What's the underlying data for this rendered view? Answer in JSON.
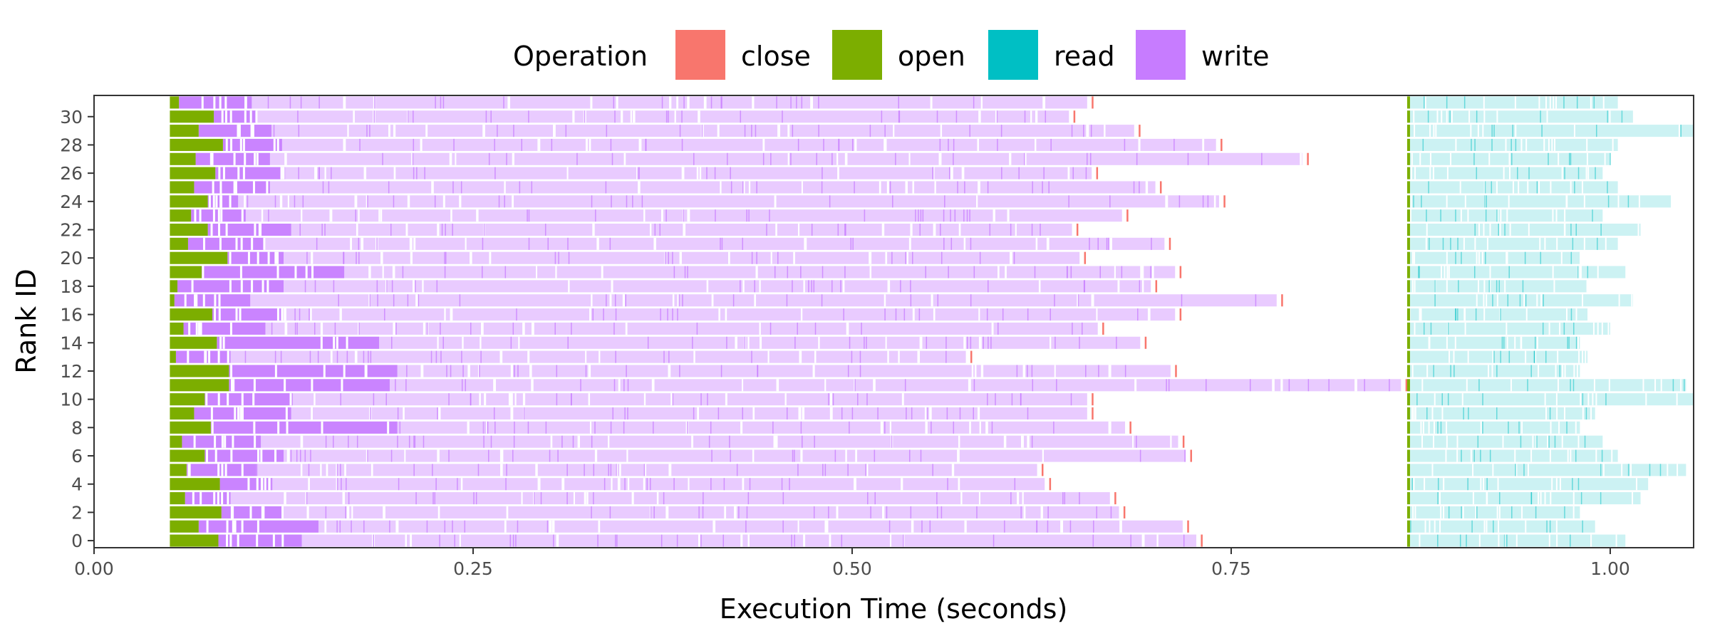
{
  "chart_data": {
    "type": "gantt",
    "title": "",
    "xlabel": "Execution Time (seconds)",
    "ylabel": "Rank ID",
    "xlim": [
      0.0,
      1.055
    ],
    "ylim": [
      -0.5,
      31.5
    ],
    "x_ticks": [
      0.0,
      0.25,
      0.5,
      0.75,
      1.0
    ],
    "x_tick_labels": [
      "0.00",
      "0.25",
      "0.50",
      "0.75",
      "1.00"
    ],
    "y_ticks": [
      0,
      2,
      4,
      6,
      8,
      10,
      12,
      14,
      16,
      18,
      20,
      22,
      24,
      26,
      28,
      30
    ],
    "y_tick_labels": [
      "0",
      "2",
      "4",
      "6",
      "8",
      "10",
      "12",
      "14",
      "16",
      "18",
      "20",
      "22",
      "24",
      "26",
      "28",
      "30"
    ],
    "grid": false,
    "legend": {
      "title": "Operation",
      "position": "top",
      "entries": [
        {
          "label": "close",
          "color": "#F8766D"
        },
        {
          "label": "open",
          "color": "#7CAE00"
        },
        {
          "label": "read",
          "color": "#00BFC4"
        },
        {
          "label": "write",
          "color": "#C77CFF"
        }
      ]
    },
    "ranks": [
      {
        "rank": 0,
        "open": [
          0.05,
          0.082
        ],
        "write_dense_end": 0.137,
        "write_end": 0.727,
        "close": 0.73,
        "read_end": 1.01
      },
      {
        "rank": 1,
        "open": [
          0.05,
          0.069
        ],
        "write_dense_end": 0.148,
        "write_end": 0.718,
        "close": 0.721,
        "read_end": 0.99
      },
      {
        "rank": 2,
        "open": [
          0.05,
          0.084
        ],
        "write_dense_end": 0.124,
        "write_end": 0.676,
        "close": 0.679,
        "read_end": 0.98
      },
      {
        "rank": 3,
        "open": [
          0.05,
          0.06
        ],
        "write_dense_end": 0.09,
        "write_end": 0.67,
        "close": 0.673,
        "read_end": 1.02
      },
      {
        "rank": 4,
        "open": [
          0.05,
          0.083
        ],
        "write_dense_end": 0.115,
        "write_end": 0.627,
        "close": 0.63,
        "read_end": 1.025
      },
      {
        "rank": 5,
        "open": [
          0.05,
          0.061
        ],
        "write_dense_end": 0.107,
        "write_end": 0.622,
        "close": 0.625,
        "read_end": 1.05
      },
      {
        "rank": 6,
        "open": [
          0.05,
          0.073
        ],
        "write_dense_end": 0.125,
        "write_end": 0.72,
        "close": 0.723,
        "read_end": 1.005
      },
      {
        "rank": 7,
        "open": [
          0.05,
          0.058
        ],
        "write_dense_end": 0.11,
        "write_end": 0.715,
        "close": 0.718,
        "read_end": 0.995
      },
      {
        "rank": 8,
        "open": [
          0.05,
          0.077
        ],
        "write_dense_end": 0.2,
        "write_end": 0.68,
        "close": 0.683,
        "read_end": 0.98
      },
      {
        "rank": 9,
        "open": [
          0.05,
          0.066
        ],
        "write_dense_end": 0.13,
        "write_end": 0.655,
        "close": 0.658,
        "read_end": 0.99
      },
      {
        "rank": 10,
        "open": [
          0.05,
          0.073
        ],
        "write_dense_end": 0.131,
        "write_end": 0.655,
        "close": 0.658,
        "read_end": 1.055
      },
      {
        "rank": 11,
        "open": [
          0.05,
          0.089
        ],
        "write_dense_end": 0.195,
        "write_end": 0.862,
        "close": 0.865,
        "read_end": 1.05
      },
      {
        "rank": 12,
        "open": [
          0.05,
          0.089
        ],
        "write_dense_end": 0.2,
        "write_end": 0.71,
        "close": 0.713,
        "read_end": 0.98
      },
      {
        "rank": 13,
        "open": [
          0.05,
          0.054
        ],
        "write_dense_end": 0.09,
        "write_end": 0.575,
        "close": 0.578,
        "read_end": 0.985
      },
      {
        "rank": 14,
        "open": [
          0.05,
          0.081
        ],
        "write_dense_end": 0.188,
        "write_end": 0.69,
        "close": 0.693,
        "read_end": 0.98
      },
      {
        "rank": 15,
        "open": [
          0.05,
          0.059
        ],
        "write_dense_end": 0.113,
        "write_end": 0.662,
        "close": 0.665,
        "read_end": 1.0
      },
      {
        "rank": 16,
        "open": [
          0.05,
          0.078
        ],
        "write_dense_end": 0.124,
        "write_end": 0.713,
        "close": 0.716,
        "read_end": 0.985
      },
      {
        "rank": 17,
        "open": [
          0.05,
          0.053
        ],
        "write_dense_end": 0.103,
        "write_end": 0.78,
        "close": 0.783,
        "read_end": 1.015
      },
      {
        "rank": 18,
        "open": [
          0.05,
          0.055
        ],
        "write_dense_end": 0.125,
        "write_end": 0.697,
        "close": 0.7,
        "read_end": 0.985
      },
      {
        "rank": 19,
        "open": [
          0.05,
          0.071
        ],
        "write_dense_end": 0.165,
        "write_end": 0.713,
        "close": 0.716,
        "read_end": 1.01
      },
      {
        "rank": 20,
        "open": [
          0.05,
          0.088
        ],
        "write_dense_end": 0.125,
        "write_end": 0.65,
        "close": 0.653,
        "read_end": 0.98
      },
      {
        "rank": 21,
        "open": [
          0.05,
          0.062
        ],
        "write_dense_end": 0.112,
        "write_end": 0.706,
        "close": 0.709,
        "read_end": 1.005
      },
      {
        "rank": 22,
        "open": [
          0.05,
          0.075
        ],
        "write_dense_end": 0.13,
        "write_end": 0.645,
        "close": 0.648,
        "read_end": 1.02
      },
      {
        "rank": 23,
        "open": [
          0.05,
          0.064
        ],
        "write_dense_end": 0.1,
        "write_end": 0.678,
        "close": 0.681,
        "read_end": 0.995
      },
      {
        "rank": 24,
        "open": [
          0.05,
          0.075
        ],
        "write_dense_end": 0.095,
        "write_end": 0.742,
        "close": 0.745,
        "read_end": 1.04
      },
      {
        "rank": 25,
        "open": [
          0.05,
          0.066
        ],
        "write_dense_end": 0.116,
        "write_end": 0.7,
        "close": 0.703,
        "read_end": 1.005
      },
      {
        "rank": 26,
        "open": [
          0.05,
          0.08
        ],
        "write_dense_end": 0.126,
        "write_end": 0.658,
        "close": 0.661,
        "read_end": 0.995
      },
      {
        "rank": 27,
        "open": [
          0.05,
          0.067
        ],
        "write_dense_end": 0.116,
        "write_end": 0.797,
        "close": 0.8,
        "read_end": 1.0
      },
      {
        "rank": 28,
        "open": [
          0.05,
          0.085
        ],
        "write_dense_end": 0.124,
        "write_end": 0.74,
        "close": 0.743,
        "read_end": 1.005
      },
      {
        "rank": 29,
        "open": [
          0.05,
          0.069
        ],
        "write_dense_end": 0.117,
        "write_end": 0.686,
        "close": 0.689,
        "read_end": 1.055
      },
      {
        "rank": 30,
        "open": [
          0.05,
          0.079
        ],
        "write_dense_end": 0.107,
        "write_end": 0.643,
        "close": 0.646,
        "read_end": 1.015
      },
      {
        "rank": 31,
        "open": [
          0.05,
          0.056
        ],
        "write_dense_end": 0.104,
        "write_end": 0.655,
        "close": 0.658,
        "read_end": 1.005
      }
    ],
    "read_start": 0.867,
    "read_open_tick": 0.867
  }
}
